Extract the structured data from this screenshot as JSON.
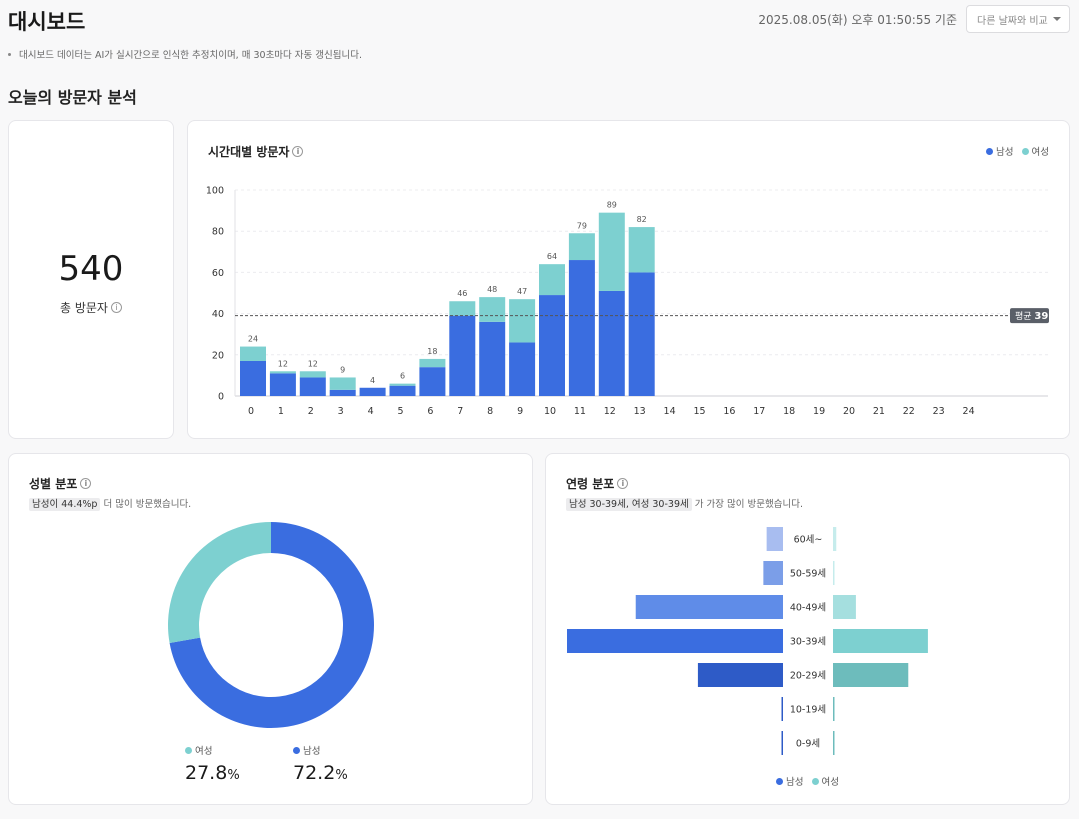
{
  "header": {
    "title": "대시보드",
    "timestamp": "2025.08.05(화) 오후 01:50:55 기준",
    "compare_label": "다른 날짜와 비교"
  },
  "notice": "대시보드 데이터는 AI가 실시간으로 인식한 추정치이며, 매 30초마다 자동 갱신됩니다.",
  "section_title": "오늘의 방문자 분석",
  "total": {
    "value": "540",
    "label": "총 방문자"
  },
  "hourly": {
    "title": "시간대별 방문자",
    "legend_male": "남성",
    "legend_female": "여성",
    "avg_label": "평균",
    "avg_value": "39"
  },
  "gender": {
    "title": "성별 분포",
    "highlight": "남성이 44.4%p",
    "sub_rest": "더 많이 방문했습니다.",
    "female_label": "여성",
    "female_pct": "27.8",
    "male_label": "남성",
    "male_pct": "72.2",
    "pct_unit": "%"
  },
  "age": {
    "title": "연령 분포",
    "highlight": "남성 30-39세, 여성 30-39세",
    "sub_rest": "가 가장 많이 방문했습니다.",
    "legend_male": "남성",
    "legend_female": "여성"
  },
  "colors": {
    "male": "#3a6de0",
    "female": "#7dd0d0",
    "avg_line": "#555555"
  },
  "chart_data": [
    {
      "type": "bar",
      "stacked": true,
      "title": "시간대별 방문자",
      "categories": [
        "0",
        "1",
        "2",
        "3",
        "4",
        "5",
        "6",
        "7",
        "8",
        "9",
        "10",
        "11",
        "12",
        "13",
        "14",
        "15",
        "16",
        "17",
        "18",
        "19",
        "20",
        "21",
        "22",
        "23",
        "24"
      ],
      "series": [
        {
          "name": "남성",
          "values": [
            17,
            11,
            9,
            3,
            4,
            5,
            14,
            39,
            36,
            26,
            49,
            66,
            51,
            60,
            null,
            null,
            null,
            null,
            null,
            null,
            null,
            null,
            null,
            null,
            null
          ]
        },
        {
          "name": "여성",
          "values": [
            7,
            1,
            3,
            6,
            0,
            1,
            4,
            7,
            12,
            21,
            15,
            13,
            38,
            22,
            null,
            null,
            null,
            null,
            null,
            null,
            null,
            null,
            null,
            null,
            null
          ]
        }
      ],
      "totals": [
        24,
        12,
        12,
        9,
        4,
        6,
        18,
        46,
        48,
        47,
        64,
        79,
        89,
        82,
        null,
        null,
        null,
        null,
        null,
        null,
        null,
        null,
        null,
        null,
        null
      ],
      "ylim": [
        0,
        100
      ],
      "yticks": [
        0,
        20,
        40,
        60,
        80,
        100
      ],
      "average": 39,
      "grid": true,
      "legend": "top-right"
    },
    {
      "type": "pie",
      "donut": true,
      "title": "성별 분포",
      "categories": [
        "여성",
        "남성"
      ],
      "values": [
        27.8,
        72.2
      ]
    },
    {
      "type": "bar",
      "orientation": "horizontal",
      "diverging": true,
      "title": "연령 분포",
      "categories": [
        "60세~",
        "50-59세",
        "40-49세",
        "30-39세",
        "20-29세",
        "10-19세",
        "0-9세"
      ],
      "series": [
        {
          "name": "남성",
          "values": [
            5,
            6,
            45,
            66,
            26,
            0,
            0
          ]
        },
        {
          "name": "여성",
          "values": [
            1,
            0,
            7,
            29,
            23,
            0,
            0
          ]
        }
      ],
      "legend": "bottom-center"
    }
  ]
}
